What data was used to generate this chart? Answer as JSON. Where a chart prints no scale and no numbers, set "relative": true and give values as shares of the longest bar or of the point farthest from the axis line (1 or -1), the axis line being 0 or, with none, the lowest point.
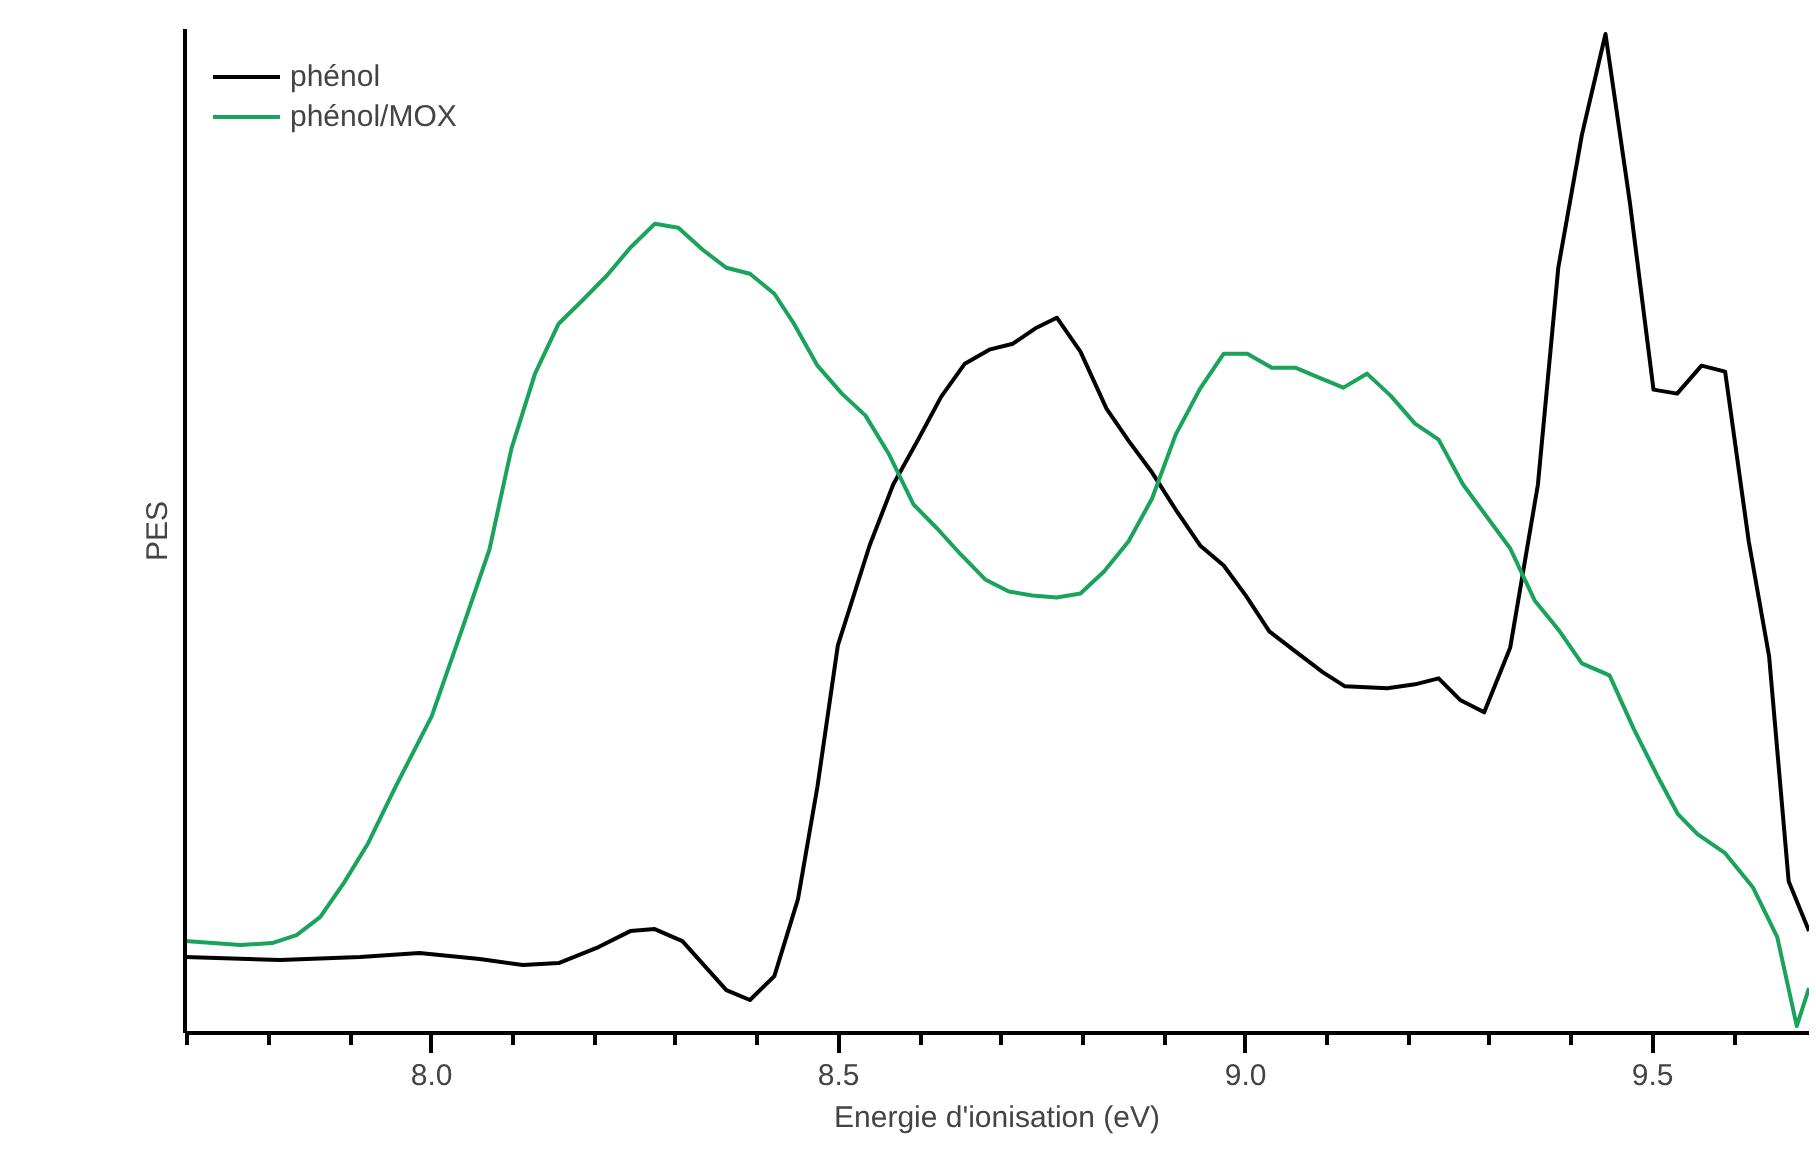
{
  "chart_data": {
    "type": "line",
    "relative": true,
    "xlabel": "Energie d'ionisation (eV)",
    "ylabel": "PES",
    "xlim": [
      7.697,
      9.692
    ],
    "xticks": [
      {
        "value": 7.7,
        "label": null
      },
      {
        "value": 7.8,
        "label": null
      },
      {
        "value": 7.9,
        "label": null
      },
      {
        "value": 8.0,
        "label": "8.0"
      },
      {
        "value": 8.1,
        "label": null
      },
      {
        "value": 8.2,
        "label": null
      },
      {
        "value": 8.3,
        "label": null
      },
      {
        "value": 8.4,
        "label": null
      },
      {
        "value": 8.5,
        "label": "8.5"
      },
      {
        "value": 8.6,
        "label": null
      },
      {
        "value": 8.7,
        "label": null
      },
      {
        "value": 8.8,
        "label": null
      },
      {
        "value": 8.9,
        "label": null
      },
      {
        "value": 9.0,
        "label": "9.0"
      },
      {
        "value": 9.1,
        "label": null
      },
      {
        "value": 9.2,
        "label": null
      },
      {
        "value": 9.3,
        "label": null
      },
      {
        "value": 9.4,
        "label": null
      },
      {
        "value": 9.5,
        "label": "9.5"
      },
      {
        "value": 9.6,
        "label": null
      }
    ],
    "tick_labels": "x",
    "grid": false,
    "legend": "top left",
    "line_style": "solid",
    "marker": "none",
    "series": [
      {
        "name": "phénol",
        "color": "#000000",
        "x": [
          7.697,
          7.814,
          7.912,
          7.985,
          8.059,
          8.112,
          8.156,
          8.205,
          8.244,
          8.274,
          8.308,
          8.362,
          8.391,
          8.421,
          8.45,
          8.474,
          8.499,
          8.538,
          8.567,
          8.597,
          8.626,
          8.655,
          8.685,
          8.714,
          8.743,
          8.768,
          8.797,
          8.829,
          8.856,
          8.885,
          8.914,
          8.944,
          8.973,
          9.0,
          9.029,
          9.061,
          9.095,
          9.122,
          9.174,
          9.208,
          9.237,
          9.264,
          9.293,
          9.325,
          9.359,
          9.384,
          9.413,
          9.442,
          9.472,
          9.501,
          9.53,
          9.56,
          9.589,
          9.618,
          9.643,
          9.667,
          9.692
        ],
        "values": [
          0.076,
          0.073,
          0.076,
          0.08,
          0.074,
          0.068,
          0.07,
          0.086,
          0.102,
          0.104,
          0.092,
          0.043,
          0.033,
          0.057,
          0.134,
          0.247,
          0.388,
          0.488,
          0.549,
          0.593,
          0.637,
          0.67,
          0.684,
          0.69,
          0.706,
          0.716,
          0.682,
          0.625,
          0.593,
          0.561,
          0.524,
          0.488,
          0.468,
          0.438,
          0.402,
          0.382,
          0.361,
          0.347,
          0.345,
          0.349,
          0.355,
          0.333,
          0.321,
          0.386,
          0.549,
          0.766,
          0.899,
          1.0,
          0.831,
          0.644,
          0.64,
          0.668,
          0.662,
          0.492,
          0.377,
          0.152,
          0.102
        ]
      },
      {
        "name": "phénol/MOX",
        "color": "#1aa35a",
        "x": [
          7.697,
          7.765,
          7.804,
          7.834,
          7.863,
          7.892,
          7.922,
          7.956,
          8.0,
          8.039,
          8.071,
          8.098,
          8.127,
          8.156,
          8.186,
          8.215,
          8.244,
          8.274,
          8.303,
          8.333,
          8.362,
          8.391,
          8.421,
          8.445,
          8.474,
          8.504,
          8.533,
          8.562,
          8.592,
          8.621,
          8.65,
          8.68,
          8.709,
          8.738,
          8.768,
          8.797,
          8.826,
          8.856,
          8.885,
          8.914,
          8.944,
          8.973,
          9.002,
          9.032,
          9.061,
          9.09,
          9.12,
          9.149,
          9.178,
          9.208,
          9.237,
          9.267,
          9.296,
          9.325,
          9.355,
          9.384,
          9.413,
          9.447,
          9.477,
          9.506,
          9.531,
          9.555,
          9.589,
          9.623,
          9.653,
          9.677,
          9.692
        ],
        "values": [
          0.092,
          0.088,
          0.09,
          0.098,
          0.116,
          0.15,
          0.19,
          0.247,
          0.317,
          0.408,
          0.484,
          0.585,
          0.66,
          0.71,
          0.734,
          0.758,
          0.786,
          0.81,
          0.806,
          0.784,
          0.766,
          0.76,
          0.74,
          0.71,
          0.668,
          0.64,
          0.618,
          0.579,
          0.529,
          0.505,
          0.479,
          0.454,
          0.442,
          0.438,
          0.436,
          0.44,
          0.462,
          0.492,
          0.535,
          0.599,
          0.645,
          0.68,
          0.68,
          0.666,
          0.666,
          0.656,
          0.646,
          0.66,
          0.638,
          0.61,
          0.594,
          0.549,
          0.517,
          0.485,
          0.433,
          0.404,
          0.37,
          0.358,
          0.304,
          0.257,
          0.219,
          0.199,
          0.18,
          0.146,
          0.096,
          0.007,
          0.045
        ]
      }
    ]
  }
}
